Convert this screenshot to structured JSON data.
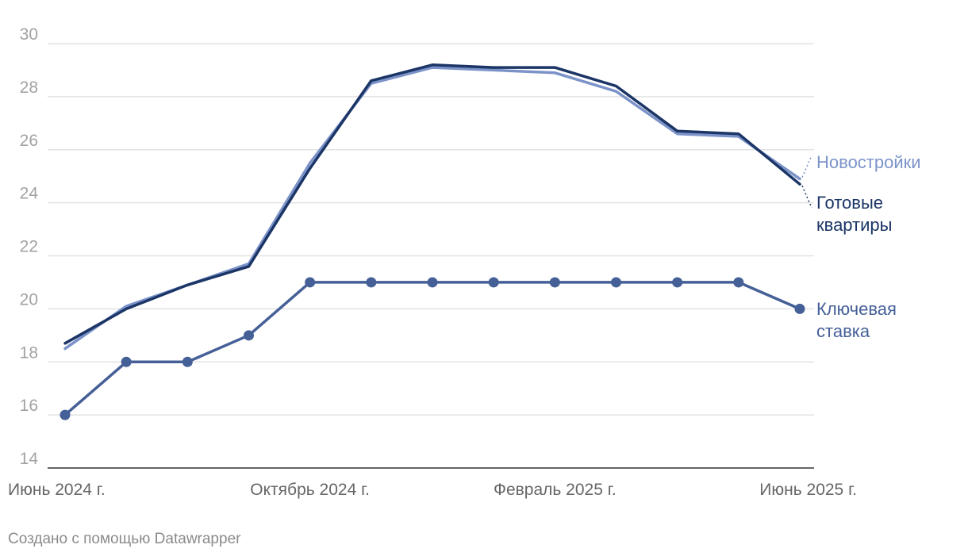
{
  "chart_data": {
    "type": "line",
    "x": [
      "2024-06",
      "2024-07",
      "2024-08",
      "2024-09",
      "2024-10",
      "2024-11",
      "2024-12",
      "2025-01",
      "2025-02",
      "2025-03",
      "2025-04",
      "2025-05",
      "2025-06"
    ],
    "xticks": [
      {
        "x": "2024-06",
        "label": "Июнь 2024 г."
      },
      {
        "x": "2024-10",
        "label": "Октябрь 2024 г."
      },
      {
        "x": "2025-02",
        "label": "Февраль 2025 г."
      },
      {
        "x": "2025-06",
        "label": "Июнь 2025 г."
      }
    ],
    "ylim": [
      14,
      30
    ],
    "yticks": [
      14,
      16,
      18,
      20,
      22,
      24,
      26,
      28,
      30
    ],
    "grid": true,
    "series": [
      {
        "name": "Новостройки",
        "color": "#7b93c9",
        "markers": false,
        "values": [
          18.5,
          20.1,
          20.9,
          21.7,
          25.5,
          28.5,
          29.1,
          29.0,
          28.9,
          28.2,
          26.6,
          26.5,
          24.9
        ]
      },
      {
        "name": "Готовые квартиры",
        "label_lines": [
          "Готовые",
          "квартиры"
        ],
        "color": "#1b3566",
        "markers": false,
        "values": [
          18.7,
          20.0,
          20.9,
          21.6,
          25.3,
          28.6,
          29.2,
          29.1,
          29.1,
          28.4,
          26.7,
          26.6,
          24.7
        ]
      },
      {
        "name": "Ключевая ставка",
        "label_lines": [
          "Ключевая",
          "ставка"
        ],
        "color": "#455f97",
        "markers": true,
        "values": [
          16,
          18,
          18,
          19,
          21,
          21,
          21,
          21,
          21,
          21,
          21,
          21,
          20
        ]
      }
    ]
  },
  "footer": {
    "credit": "Создано с помощью Datawrapper"
  }
}
